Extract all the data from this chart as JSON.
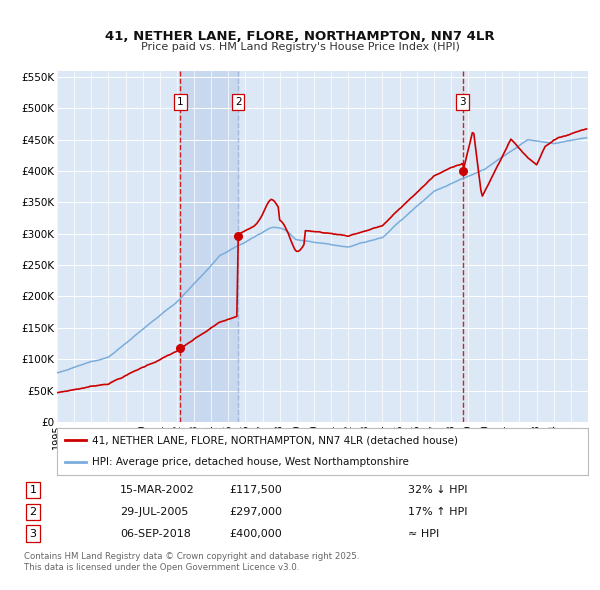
{
  "title": "41, NETHER LANE, FLORE, NORTHAMPTON, NN7 4LR",
  "subtitle": "Price paid vs. HM Land Registry's House Price Index (HPI)",
  "legend_line1": "41, NETHER LANE, FLORE, NORTHAMPTON, NN7 4LR (detached house)",
  "legend_line2": "HPI: Average price, detached house, West Northamptonshire",
  "transaction1_date": "15-MAR-2002",
  "transaction1_price": 117500,
  "transaction1_label": "32% ↓ HPI",
  "transaction2_date": "29-JUL-2005",
  "transaction2_price": 297000,
  "transaction2_label": "17% ↑ HPI",
  "transaction3_date": "06-SEP-2018",
  "transaction3_price": 400000,
  "transaction3_label": "≈ HPI",
  "footer": "Contains HM Land Registry data © Crown copyright and database right 2025.\nThis data is licensed under the Open Government Licence v3.0.",
  "background_color": "#ffffff",
  "plot_bg_color": "#dce8f5",
  "grid_color": "#ffffff",
  "red_line_color": "#cc0000",
  "blue_line_color": "#7aaddc",
  "highlight_color": "#c8d8ee",
  "dashed_red": "#cc0000",
  "dashed_blue": "#99aacc",
  "ylim": [
    0,
    560000
  ],
  "ytick_vals": [
    0,
    50000,
    100000,
    150000,
    200000,
    250000,
    300000,
    350000,
    400000,
    450000,
    500000,
    550000
  ],
  "ytick_labels": [
    "£0",
    "£50K",
    "£100K",
    "£150K",
    "£200K",
    "£250K",
    "£300K",
    "£350K",
    "£400K",
    "£450K",
    "£500K",
    "£550K"
  ],
  "t1_yr": 2002.205,
  "t2_yr": 2005.578,
  "t3_yr": 2018.678
}
